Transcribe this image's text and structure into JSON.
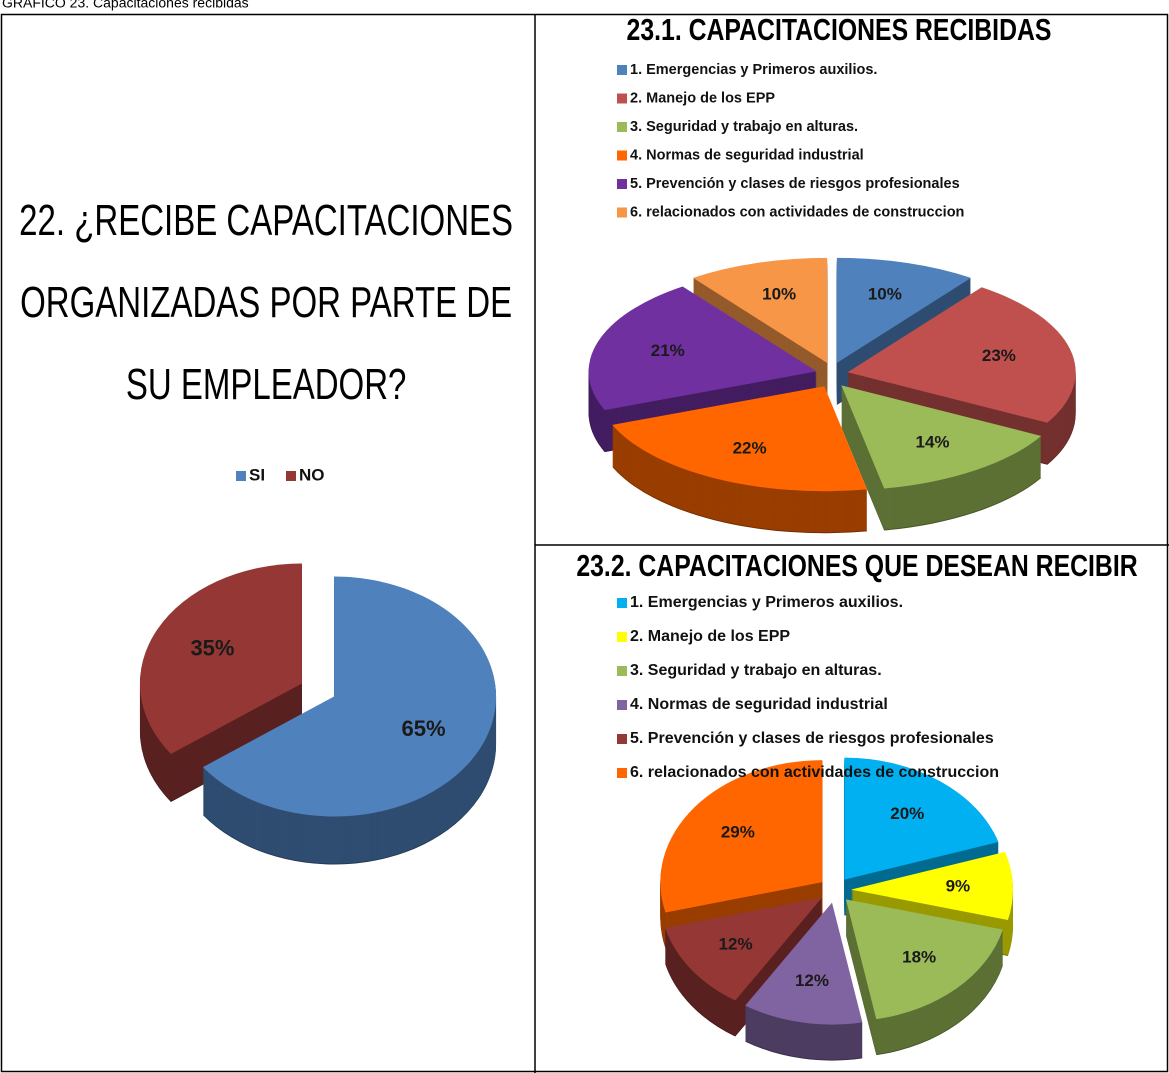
{
  "caption": "GRAFICO 23. Capacitaciones recibidas",
  "chart_data": [
    {
      "type": "pie",
      "title": "22. ¿RECIBE CAPACITACIONES ORGANIZADAS POR PARTE DE SU EMPLEADOR?",
      "categories": [
        "SI",
        "NO"
      ],
      "values": [
        65,
        35
      ],
      "value_labels": [
        "65%",
        "35%"
      ],
      "colors": [
        "#4f81bd",
        "#953735"
      ],
      "legend": "top"
    },
    {
      "type": "pie",
      "title": "23.1. CAPACITACIONES RECIBIDAS",
      "categories": [
        "1. Emergencias y Primeros auxilios.",
        "2. Manejo de los EPP",
        "3. Seguridad y trabajo en alturas.",
        "4. Normas de seguridad industrial",
        "5. Prevención y clases de riesgos profesionales",
        "6. relacionados con actividades de construccion"
      ],
      "values": [
        10,
        23,
        14,
        22,
        21,
        10
      ],
      "value_labels": [
        "10%",
        "23%",
        "14%",
        "22%",
        "21%",
        "10%"
      ],
      "colors": [
        "#4f81bd",
        "#c0504d",
        "#9bbb59",
        "#ff6600",
        "#7030a0",
        "#f79646"
      ],
      "legend": "top"
    },
    {
      "type": "pie",
      "title": "23.2. CAPACITACIONES QUE DESEAN RECIBIR",
      "categories": [
        "1. Emergencias y Primeros auxilios.",
        "2. Manejo de los EPP",
        "3. Seguridad y trabajo en alturas.",
        "4. Normas de seguridad industrial",
        "5. Prevención y clases de riesgos profesionales",
        "6. relacionados con actividades de construccion"
      ],
      "values": [
        20,
        9,
        18,
        12,
        12,
        29
      ],
      "value_labels": [
        "20%",
        "9%",
        "18%",
        "12%",
        "12%",
        "29%"
      ],
      "colors": [
        "#00b0f0",
        "#ffff00",
        "#9bbb59",
        "#8064a2",
        "#953735",
        "#ff6600"
      ],
      "legend": "top"
    }
  ]
}
